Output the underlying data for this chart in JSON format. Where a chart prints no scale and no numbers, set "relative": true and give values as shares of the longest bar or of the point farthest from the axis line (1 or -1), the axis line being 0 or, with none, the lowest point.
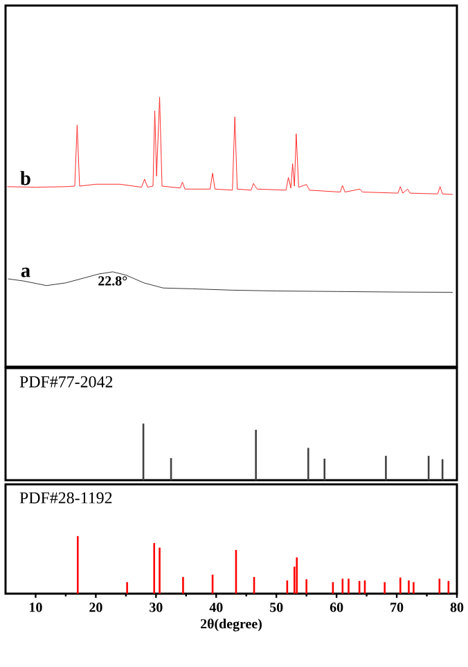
{
  "chart_data": [
    {
      "type": "line",
      "relative": true,
      "xlim": [
        5,
        80
      ],
      "tick_labels": false,
      "annotations": [
        {
          "text": "22.8°",
          "x": 22.8,
          "y": 0.352
        }
      ],
      "series": [
        {
          "name": "b",
          "color": "#ff2a2a",
          "x": [
            5.3,
            10,
            15,
            16.5,
            16.9,
            17.3,
            20,
            24,
            27.6,
            28.1,
            28.6,
            29.5,
            29.8,
            30.1,
            30.6,
            31.0,
            34.0,
            34.4,
            34.8,
            39.0,
            39.4,
            39.8,
            42.7,
            43.1,
            43.5,
            45.8,
            46.2,
            46.8,
            51.6,
            52.0,
            52.4,
            52.7,
            53.0,
            53.3,
            53.7,
            55.0,
            55.5,
            60.6,
            61.0,
            61.4,
            63.9,
            64.3,
            70.2,
            70.6,
            71.0,
            71.8,
            72.2,
            76.8,
            77.2,
            77.6,
            79.3
          ],
          "values": [
            0.668,
            0.666,
            0.668,
            0.67,
            0.897,
            0.67,
            0.677,
            0.677,
            0.666,
            0.696,
            0.666,
            0.67,
            0.949,
            0.707,
            1.0,
            0.67,
            0.663,
            0.685,
            0.659,
            0.659,
            0.718,
            0.659,
            0.655,
            0.927,
            0.659,
            0.655,
            0.68,
            0.659,
            0.655,
            0.702,
            0.663,
            0.753,
            0.67,
            0.864,
            0.666,
            0.676,
            0.655,
            0.648,
            0.672,
            0.648,
            0.659,
            0.648,
            0.644,
            0.668,
            0.644,
            0.659,
            0.644,
            0.641,
            0.668,
            0.641,
            0.639
          ]
        },
        {
          "name": "a",
          "color": "#333333",
          "x": [
            5.4,
            8,
            11.8,
            15,
            18,
            20.5,
            22.8,
            25,
            28,
            31.2,
            36,
            42.7,
            50,
            60,
            70,
            79.3
          ],
          "values": [
            0.326,
            0.318,
            0.301,
            0.311,
            0.329,
            0.344,
            0.352,
            0.34,
            0.311,
            0.292,
            0.289,
            0.284,
            0.281,
            0.279,
            0.277,
            0.276
          ]
        }
      ]
    },
    {
      "type": "bar",
      "title": "PDF#77-2042",
      "relative": true,
      "xlim": [
        5,
        80
      ],
      "tick_labels": false,
      "color": "#404040",
      "x": [
        27.9,
        32.5,
        46.6,
        55.3,
        58.0,
        68.2,
        75.3,
        77.6
      ],
      "values": [
        1.0,
        0.39,
        0.89,
        0.57,
        0.38,
        0.43,
        0.43,
        0.37
      ]
    },
    {
      "type": "bar",
      "title": "PDF#28-1192",
      "relative": true,
      "xlim": [
        5,
        80
      ],
      "tick_labels": "x",
      "color": "#ff0000",
      "xticks": [
        10,
        20,
        30,
        40,
        50,
        60,
        70,
        80
      ],
      "xlabel": "2θ(degree)",
      "x": [
        17.0,
        25.2,
        29.7,
        30.6,
        34.5,
        39.4,
        43.3,
        46.3,
        51.8,
        53.0,
        53.4,
        55.0,
        59.4,
        61.0,
        62.0,
        63.8,
        64.7,
        68.0,
        70.6,
        72.0,
        72.8,
        77.1,
        78.6
      ],
      "values": [
        1.0,
        0.2,
        0.88,
        0.8,
        0.29,
        0.33,
        0.76,
        0.29,
        0.23,
        0.47,
        0.63,
        0.25,
        0.2,
        0.26,
        0.26,
        0.22,
        0.23,
        0.2,
        0.28,
        0.23,
        0.2,
        0.26,
        0.22
      ]
    }
  ]
}
